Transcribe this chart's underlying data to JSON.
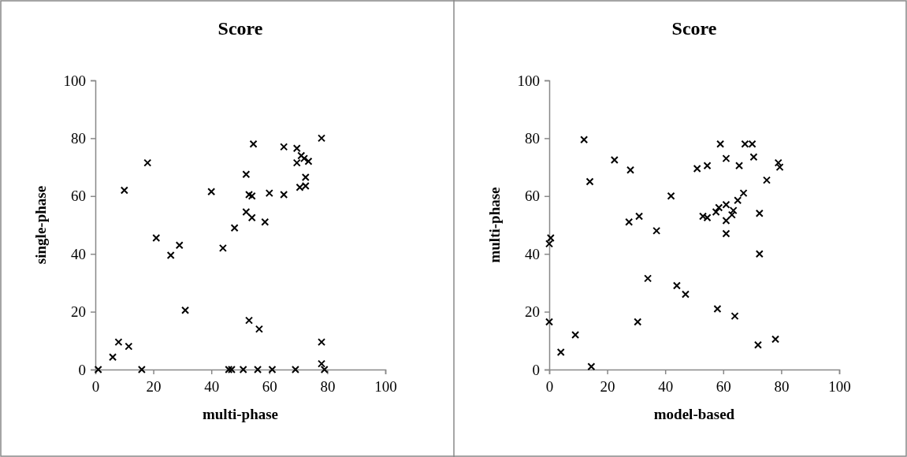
{
  "chart_data": [
    {
      "type": "scatter",
      "title": "Score",
      "xlabel": "multi-phase",
      "ylabel": "single-phase",
      "xlim": [
        0,
        100
      ],
      "ylim": [
        0,
        100
      ],
      "xticks": [
        0,
        20,
        40,
        60,
        80,
        100
      ],
      "yticks": [
        0,
        20,
        40,
        60,
        80,
        100
      ],
      "marker": "cross",
      "series": [
        {
          "color": "#000000",
          "x": [
            1,
            6,
            8,
            11.5,
            10,
            18,
            16,
            21,
            26,
            29,
            31,
            40,
            44,
            46,
            47,
            48,
            51,
            52,
            52,
            53,
            54,
            53,
            54,
            54.5,
            56,
            56.5,
            58.5,
            60,
            61,
            65,
            65,
            69,
            69.5,
            69.5,
            70.5,
            71,
            72,
            72.5,
            72.5,
            73.5,
            78,
            78,
            78,
            79
          ],
          "values": [
            0,
            4.3,
            9.5,
            8,
            62,
            71.5,
            0,
            45.5,
            39.5,
            43,
            20.5,
            61.5,
            42,
            0,
            0,
            49,
            0,
            67.5,
            54.5,
            60.5,
            60,
            17,
            52.5,
            78,
            0,
            14,
            51,
            61,
            0,
            77,
            60.5,
            0,
            76.5,
            71.5,
            63,
            74,
            73,
            66.5,
            63.5,
            72,
            80,
            9.5,
            2,
            0
          ]
        }
      ]
    },
    {
      "type": "scatter",
      "title": "Score",
      "xlabel": "model-based",
      "ylabel": "multi-phase",
      "xlim": [
        0,
        100
      ],
      "ylim": [
        0,
        100
      ],
      "xticks": [
        0,
        20,
        40,
        60,
        80,
        100
      ],
      "yticks": [
        0,
        20,
        40,
        60,
        80,
        100
      ],
      "marker": "cross",
      "series": [
        {
          "color": "#000000",
          "x": [
            0,
            0.5,
            0,
            4,
            9,
            12,
            14,
            14.5,
            22.5,
            27.5,
            28,
            30.5,
            31,
            34,
            37,
            42,
            44,
            47,
            51,
            53,
            54.5,
            54.5,
            57.5,
            58,
            58.5,
            59,
            61,
            61,
            61,
            61,
            63,
            64,
            63.5,
            65,
            65.5,
            67,
            67.5,
            70,
            70.5,
            72,
            72.5,
            72.5,
            75,
            78,
            79,
            79.5
          ],
          "values": [
            43.5,
            45.5,
            16.5,
            6,
            12,
            79.5,
            65,
            1,
            72.5,
            51,
            69,
            16.5,
            53,
            31.5,
            48,
            60,
            29,
            26,
            69.5,
            53,
            70.5,
            52.5,
            54.5,
            21,
            56,
            78,
            51.5,
            47,
            57,
            73,
            53.5,
            18.5,
            55,
            58.5,
            70.5,
            61,
            78,
            78,
            73.5,
            8.5,
            54,
            40,
            65.5,
            10.5,
            71.5,
            70
          ]
        }
      ]
    }
  ]
}
